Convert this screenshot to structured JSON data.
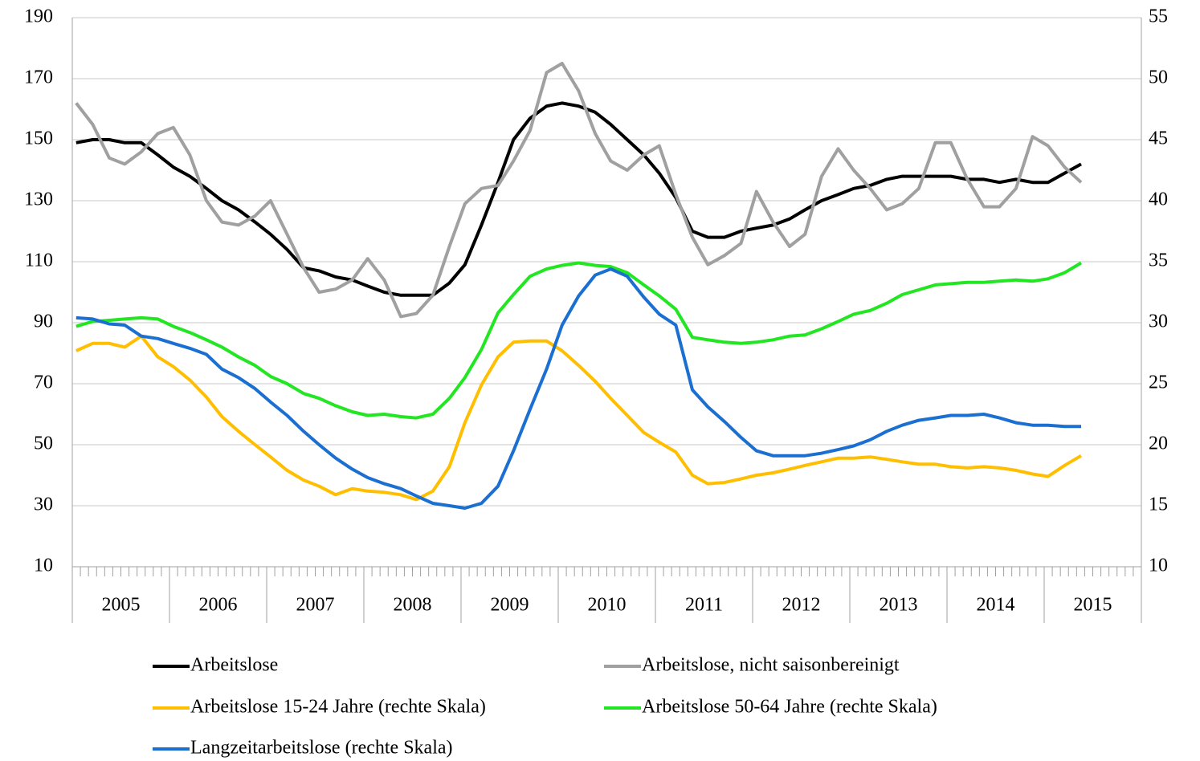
{
  "chart_data": {
    "type": "line",
    "x": [
      2005.04,
      2005.21,
      2005.38,
      2005.54,
      2005.71,
      2005.88,
      2006.04,
      2006.21,
      2006.38,
      2006.54,
      2006.71,
      2006.88,
      2007.04,
      2007.21,
      2007.38,
      2007.54,
      2007.71,
      2007.88,
      2008.04,
      2008.21,
      2008.38,
      2008.54,
      2008.71,
      2008.88,
      2009.04,
      2009.21,
      2009.38,
      2009.54,
      2009.71,
      2009.88,
      2010.04,
      2010.21,
      2010.38,
      2010.54,
      2010.71,
      2010.88,
      2011.04,
      2011.21,
      2011.38,
      2011.54,
      2011.71,
      2011.88,
      2012.04,
      2012.21,
      2012.38,
      2012.54,
      2012.71,
      2012.88,
      2013.04,
      2013.21,
      2013.38,
      2013.54,
      2013.71,
      2013.88,
      2014.04,
      2014.21,
      2014.38,
      2014.54,
      2014.71,
      2014.88,
      2015.04,
      2015.21,
      2015.38
    ],
    "xlim": [
      2005,
      2016
    ],
    "xticks": [
      {
        "value": 2005.5,
        "label": "2005"
      },
      {
        "value": 2006.5,
        "label": "2006"
      },
      {
        "value": 2007.5,
        "label": "2007"
      },
      {
        "value": 2008.5,
        "label": "2008"
      },
      {
        "value": 2009.5,
        "label": "2009"
      },
      {
        "value": 2010.5,
        "label": "2010"
      },
      {
        "value": 2011.5,
        "label": "2011"
      },
      {
        "value": 2012.5,
        "label": "2012"
      },
      {
        "value": 2013.5,
        "label": "2013"
      },
      {
        "value": 2014.5,
        "label": "2014"
      },
      {
        "value": 2015.5,
        "label": "2015"
      }
    ],
    "ylim": [
      10,
      190
    ],
    "yticks": [
      10,
      30,
      50,
      70,
      90,
      110,
      130,
      150,
      170,
      190
    ],
    "y2lim": [
      10,
      55
    ],
    "y2ticks": [
      10,
      15,
      20,
      25,
      30,
      35,
      40,
      45,
      50,
      55
    ],
    "grid": true,
    "legend": "bottom",
    "series": [
      {
        "name": "Arbeitslose",
        "color": "#000000",
        "values": [
          149,
          150,
          150,
          149,
          149,
          145,
          141,
          138,
          134,
          130,
          127,
          123,
          119,
          114,
          108,
          107,
          105,
          104,
          102,
          100,
          99,
          99,
          99,
          103,
          109,
          122,
          136,
          150,
          157,
          161,
          162,
          161,
          159,
          155,
          150,
          145,
          139,
          131,
          120,
          118,
          118,
          120,
          121,
          122,
          124,
          127,
          130,
          132,
          134,
          135,
          137,
          138,
          138,
          138,
          138,
          137,
          137,
          136,
          137,
          136,
          136,
          139,
          142
        ]
      },
      {
        "name": "Arbeitslose, nicht saisonbereinigt",
        "color": "#a0a0a0",
        "values": [
          162,
          155,
          144,
          142,
          146,
          152,
          154,
          145,
          130,
          123,
          122,
          125,
          130,
          119,
          108,
          100,
          101,
          104,
          111,
          104,
          92,
          93,
          99,
          115,
          129,
          134,
          135,
          143,
          153,
          172,
          175,
          166,
          152,
          143,
          140,
          145,
          148,
          132,
          118,
          109,
          112,
          116,
          133,
          123,
          115,
          119,
          138,
          147,
          140,
          134,
          127,
          129,
          134,
          149,
          149,
          137,
          128,
          128,
          134,
          151,
          148,
          141,
          136
        ]
      },
      {
        "name": "Arbeitslose 15-24 Jahre (rechte Skala)",
        "color": "#ffbf00",
        "axis": "y2",
        "values": [
          27.7,
          28.3,
          28.3,
          28.0,
          28.9,
          27.2,
          26.4,
          25.3,
          23.9,
          22.3,
          21.1,
          20.0,
          19.0,
          17.9,
          17.1,
          16.6,
          15.9,
          16.4,
          16.2,
          16.1,
          15.9,
          15.5,
          16.2,
          18.2,
          21.8,
          24.9,
          27.2,
          28.4,
          28.5,
          28.5,
          27.7,
          26.5,
          25.2,
          23.8,
          22.4,
          21.0,
          20.2,
          19.4,
          17.5,
          16.8,
          16.9,
          17.2,
          17.5,
          17.7,
          18.0,
          18.3,
          18.6,
          18.9,
          18.9,
          19.0,
          18.8,
          18.6,
          18.4,
          18.4,
          18.2,
          18.1,
          18.2,
          18.1,
          17.9,
          17.6,
          17.4,
          18.3,
          19.1
        ]
      },
      {
        "name": "Arbeitslose 50-64 Jahre (rechte Skala)",
        "color": "#22e622",
        "axis": "y2",
        "values": [
          29.7,
          30.1,
          30.2,
          30.3,
          30.4,
          30.3,
          29.7,
          29.2,
          28.6,
          28.0,
          27.2,
          26.5,
          25.6,
          25.0,
          24.2,
          23.8,
          23.2,
          22.7,
          22.4,
          22.5,
          22.3,
          22.2,
          22.5,
          23.8,
          25.5,
          27.8,
          30.8,
          32.3,
          33.8,
          34.4,
          34.7,
          34.9,
          34.7,
          34.6,
          34.1,
          33.1,
          32.2,
          31.1,
          28.8,
          28.6,
          28.4,
          28.3,
          28.4,
          28.6,
          28.9,
          29.0,
          29.5,
          30.1,
          30.7,
          31.0,
          31.6,
          32.3,
          32.7,
          33.1,
          33.2,
          33.3,
          33.3,
          33.4,
          33.5,
          33.4,
          33.6,
          34.1,
          34.9
        ]
      },
      {
        "name": "Langzeitarbeitslose (rechte Skala)",
        "color": "#1a6fd1",
        "axis": "y2",
        "values": [
          30.4,
          30.3,
          29.9,
          29.8,
          28.9,
          28.7,
          28.3,
          27.9,
          27.4,
          26.2,
          25.5,
          24.6,
          23.5,
          22.4,
          21.1,
          20.0,
          18.9,
          18.0,
          17.3,
          16.8,
          16.4,
          15.8,
          15.2,
          15.0,
          14.8,
          15.2,
          16.6,
          19.5,
          22.9,
          26.2,
          29.8,
          32.2,
          33.9,
          34.4,
          33.8,
          32.1,
          30.7,
          29.8,
          24.5,
          23.1,
          21.9,
          20.6,
          19.5,
          19.1,
          19.1,
          19.1,
          19.3,
          19.6,
          19.9,
          20.4,
          21.1,
          21.6,
          22.0,
          22.2,
          22.4,
          22.4,
          22.5,
          22.2,
          21.8,
          21.6,
          21.6,
          21.5,
          21.5
        ]
      }
    ]
  }
}
